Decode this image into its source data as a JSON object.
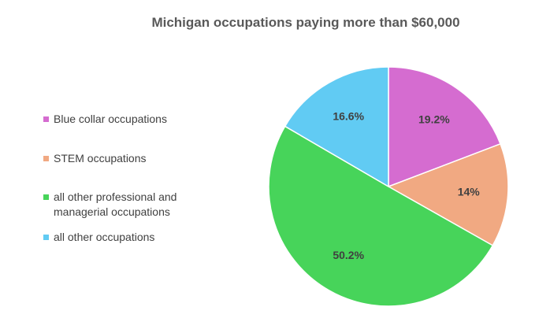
{
  "chart_data": {
    "type": "pie",
    "title": "Michigan occupations paying more than $60,000",
    "legend_position": "left",
    "slices": [
      {
        "label": "Blue collar occupations",
        "value": 19.2,
        "display": "19.2%",
        "color": "#d56cd0"
      },
      {
        "label": "STEM occupations",
        "value": 14.0,
        "display": "14%",
        "color": "#f1a982"
      },
      {
        "label": "all other professional and managerial occupations",
        "value": 50.2,
        "display": "50.2%",
        "color": "#47d45a"
      },
      {
        "label": "all other occupations",
        "value": 16.6,
        "display": "16.6%",
        "color": "#61cbf3"
      }
    ]
  }
}
